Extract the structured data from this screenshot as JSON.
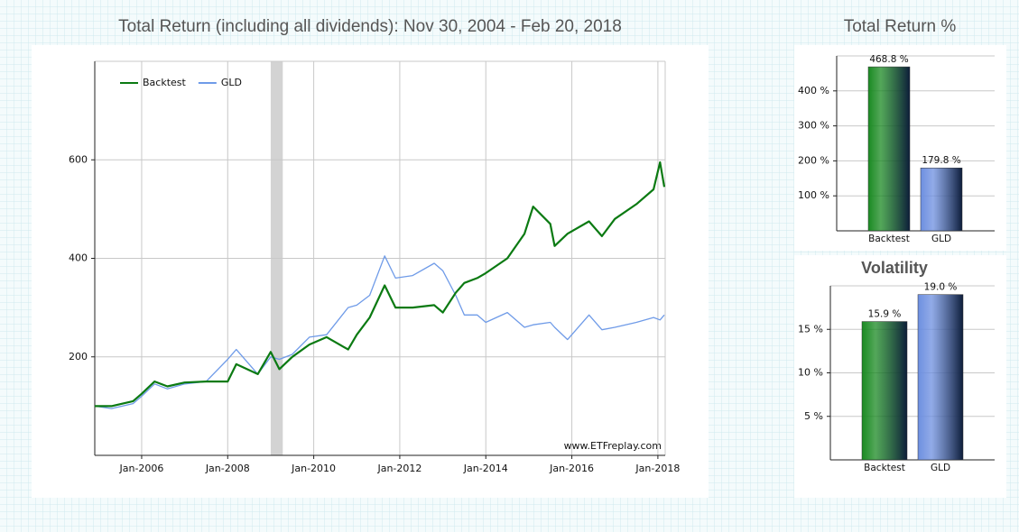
{
  "chart_data": [
    {
      "type": "line",
      "title": "Total Return (including all dividends): Nov 30, 2004 - Feb 20, 2018",
      "annotation": "www.ETFreplay.com",
      "x": [
        2004.91,
        2005.3,
        2005.8,
        2006.0,
        2006.3,
        2006.6,
        2007.0,
        2007.5,
        2008.0,
        2008.2,
        2008.7,
        2009.0,
        2009.2,
        2009.5,
        2009.9,
        2010.3,
        2010.8,
        2011.0,
        2011.3,
        2011.65,
        2011.9,
        2012.3,
        2012.8,
        2013.0,
        2013.3,
        2013.5,
        2013.8,
        2014.0,
        2014.5,
        2014.9,
        2015.1,
        2015.5,
        2015.6,
        2015.9,
        2016.4,
        2016.7,
        2017.0,
        2017.5,
        2017.9,
        2018.05,
        2018.15
      ],
      "series": [
        {
          "name": "Backtest",
          "color": "#0b7a12",
          "values": [
            100,
            100,
            110,
            125,
            150,
            140,
            148,
            150,
            150,
            185,
            165,
            210,
            175,
            200,
            225,
            240,
            215,
            245,
            280,
            345,
            300,
            300,
            305,
            290,
            330,
            350,
            360,
            370,
            400,
            450,
            505,
            470,
            425,
            450,
            475,
            445,
            480,
            510,
            540,
            595,
            545
          ]
        },
        {
          "name": "GLD",
          "color": "#6f9be8",
          "values": [
            100,
            95,
            105,
            120,
            145,
            135,
            145,
            150,
            195,
            215,
            165,
            200,
            195,
            205,
            240,
            245,
            300,
            305,
            325,
            405,
            360,
            365,
            390,
            375,
            325,
            285,
            285,
            270,
            290,
            260,
            265,
            270,
            260,
            235,
            285,
            255,
            260,
            270,
            280,
            275,
            285
          ]
        }
      ],
      "shaded_x": [
        2009.0,
        2009.28
      ],
      "xlim": [
        2004.91,
        2018.17
      ],
      "xticks": [
        {
          "value": 2006,
          "label": "Jan-2006"
        },
        {
          "value": 2008,
          "label": "Jan-2008"
        },
        {
          "value": 2010,
          "label": "Jan-2010"
        },
        {
          "value": 2012,
          "label": "Jan-2012"
        },
        {
          "value": 2014,
          "label": "Jan-2014"
        },
        {
          "value": 2016,
          "label": "Jan-2016"
        },
        {
          "value": 2018,
          "label": "Jan-2018"
        }
      ],
      "ylim": [
        0,
        800
      ],
      "yticks": [
        200,
        400,
        600
      ],
      "grid": true,
      "legend": "upper left"
    },
    {
      "type": "bar",
      "title": "Total Return %",
      "categories": [
        "Backtest",
        "GLD"
      ],
      "values": [
        468.8,
        179.8
      ],
      "value_labels": [
        "468.8 %",
        "179.8 %"
      ],
      "colors": [
        "#1a8a22",
        "#6d8fe0"
      ],
      "ylim": [
        0,
        500
      ],
      "yticks": [
        {
          "value": 100,
          "label": "100 %"
        },
        {
          "value": 200,
          "label": "200 %"
        },
        {
          "value": 300,
          "label": "300 %"
        },
        {
          "value": 400,
          "label": "400 %"
        }
      ],
      "grid": true
    },
    {
      "type": "bar",
      "title": "Volatility",
      "categories": [
        "Backtest",
        "GLD"
      ],
      "values": [
        15.9,
        19.0
      ],
      "value_labels": [
        "15.9 %",
        "19.0 %"
      ],
      "colors": [
        "#1a8a22",
        "#6d8fe0"
      ],
      "ylim": [
        0,
        20
      ],
      "yticks": [
        {
          "value": 5,
          "label": "5 %"
        },
        {
          "value": 10,
          "label": "10 %"
        },
        {
          "value": 15,
          "label": "15 %"
        }
      ],
      "grid": true
    }
  ]
}
